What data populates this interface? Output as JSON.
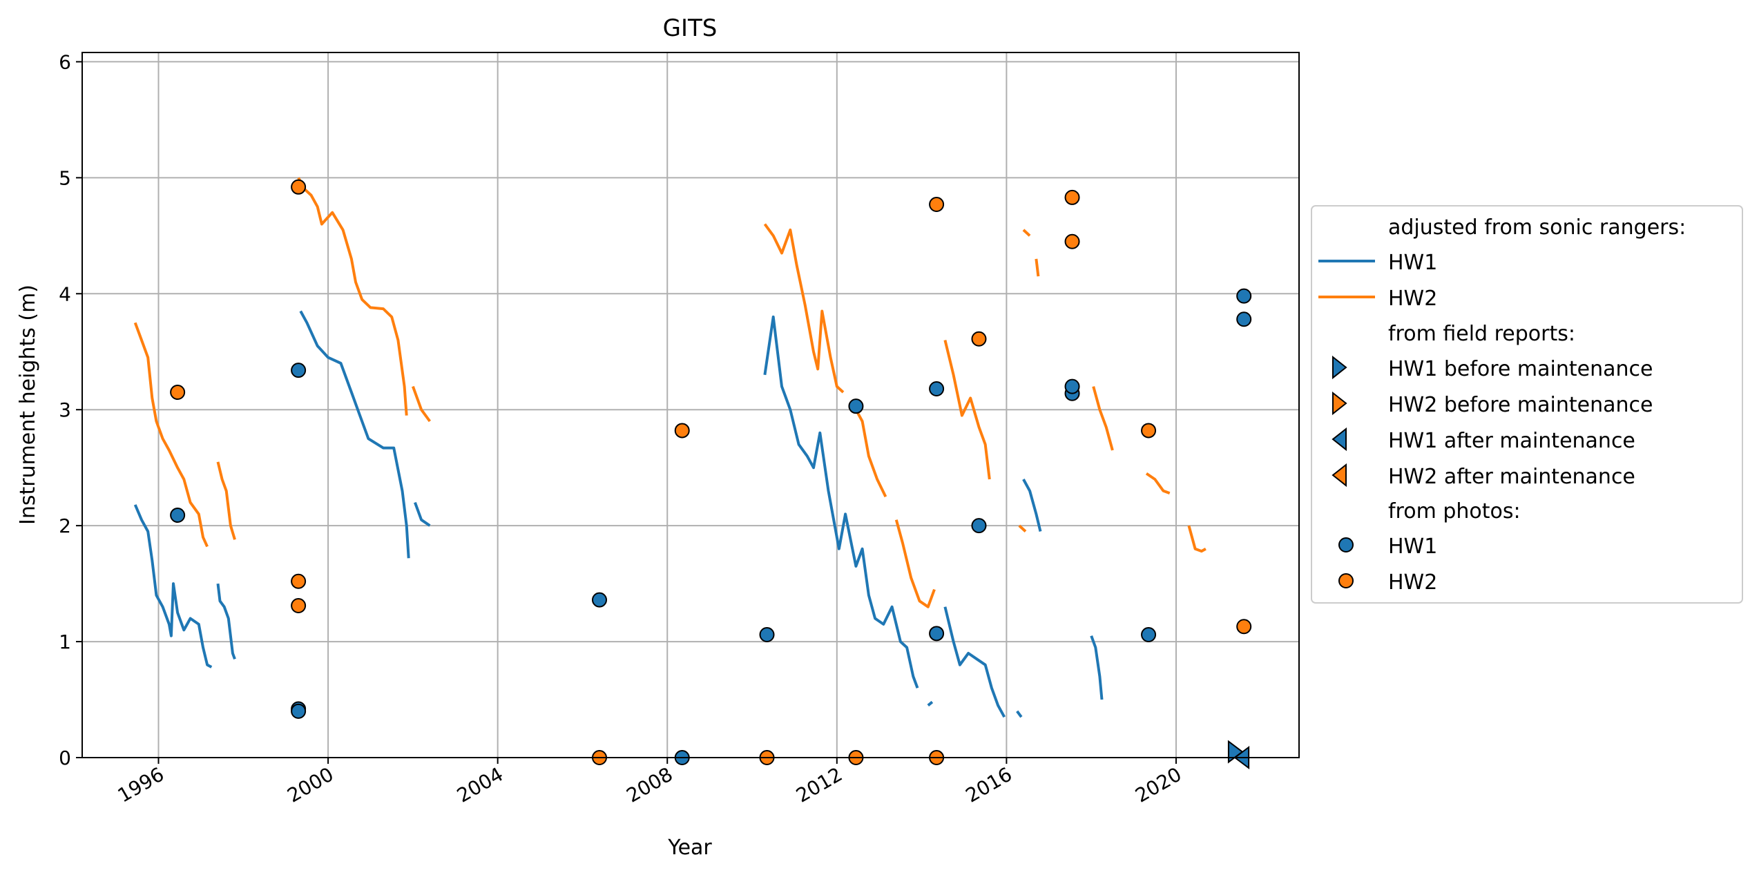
{
  "chart_data": {
    "type": "line",
    "title": "GITS",
    "xlabel": "Year",
    "ylabel": "Instrument heights (m)",
    "xlim": [
      1994.2,
      2022.9
    ],
    "ylim": [
      0,
      6.08
    ],
    "x_ticks": [
      1996,
      2000,
      2004,
      2008,
      2012,
      2016,
      2020
    ],
    "x_tick_labels": [
      "1996",
      "2000",
      "2004",
      "2008",
      "2012",
      "2016",
      "2020"
    ],
    "y_ticks": [
      0,
      1,
      2,
      3,
      4,
      5,
      6
    ],
    "y_tick_labels": [
      "0",
      "1",
      "2",
      "3",
      "4",
      "5",
      "6"
    ],
    "grid": true,
    "legend_position": "outside right",
    "legend": {
      "header_sonic": "adjusted from sonic rangers:",
      "header_field": "from field reports:",
      "header_photos": "from photos:",
      "hw1": "HW1",
      "hw2": "HW2",
      "hw1_before": "HW1 before maintenance",
      "hw2_before": "HW2 before maintenance",
      "hw1_after": "HW1 after maintenance",
      "hw2_after": "HW2 after maintenance"
    },
    "colors": {
      "hw1": "#1f77b4",
      "hw2": "#ff7f0e"
    },
    "sonic_series": [
      {
        "name": "HW1",
        "color": "#1f77b4",
        "segments": [
          [
            [
              1995.45,
              2.18
            ],
            [
              1995.6,
              2.05
            ],
            [
              1995.75,
              1.95
            ],
            [
              1995.85,
              1.7
            ],
            [
              1995.95,
              1.4
            ],
            [
              1996.1,
              1.3
            ],
            [
              1996.25,
              1.15
            ],
            [
              1996.3,
              1.05
            ],
            [
              1996.35,
              1.5
            ],
            [
              1996.45,
              1.25
            ],
            [
              1996.6,
              1.1
            ],
            [
              1996.75,
              1.2
            ],
            [
              1996.95,
              1.15
            ],
            [
              1997.05,
              0.95
            ],
            [
              1997.15,
              0.8
            ],
            [
              1997.25,
              0.78
            ]
          ],
          [
            [
              1997.4,
              1.5
            ],
            [
              1997.45,
              1.35
            ],
            [
              1997.55,
              1.3
            ],
            [
              1997.65,
              1.2
            ],
            [
              1997.75,
              0.9
            ],
            [
              1997.8,
              0.85
            ]
          ],
          [
            [
              1999.35,
              3.85
            ],
            [
              1999.5,
              3.75
            ],
            [
              1999.75,
              3.55
            ],
            [
              2000.0,
              3.45
            ],
            [
              2000.3,
              3.4
            ],
            [
              2000.55,
              3.15
            ],
            [
              2000.75,
              2.95
            ],
            [
              2000.95,
              2.75
            ],
            [
              2001.3,
              2.67
            ],
            [
              2001.55,
              2.67
            ],
            [
              2001.75,
              2.3
            ],
            [
              2001.85,
              2.0
            ],
            [
              2001.9,
              1.72
            ]
          ],
          [
            [
              2002.05,
              2.2
            ],
            [
              2002.2,
              2.05
            ],
            [
              2002.4,
              2.0
            ]
          ],
          [
            [
              2010.3,
              3.3
            ],
            [
              2010.5,
              3.8
            ],
            [
              2010.7,
              3.2
            ],
            [
              2010.9,
              3.0
            ],
            [
              2011.1,
              2.7
            ],
            [
              2011.3,
              2.6
            ],
            [
              2011.45,
              2.5
            ],
            [
              2011.6,
              2.8
            ],
            [
              2011.8,
              2.3
            ],
            [
              2011.95,
              2.0
            ],
            [
              2012.05,
              1.8
            ],
            [
              2012.2,
              2.1
            ],
            [
              2012.45,
              1.65
            ],
            [
              2012.6,
              1.8
            ],
            [
              2012.75,
              1.4
            ],
            [
              2012.9,
              1.2
            ],
            [
              2013.1,
              1.15
            ],
            [
              2013.3,
              1.3
            ],
            [
              2013.5,
              1.0
            ],
            [
              2013.65,
              0.95
            ],
            [
              2013.8,
              0.7
            ],
            [
              2013.9,
              0.6
            ]
          ],
          [
            [
              2014.15,
              0.45
            ],
            [
              2014.25,
              0.48
            ]
          ],
          [
            [
              2014.55,
              1.3
            ],
            [
              2014.75,
              1.0
            ],
            [
              2014.9,
              0.8
            ],
            [
              2015.1,
              0.9
            ],
            [
              2015.3,
              0.85
            ],
            [
              2015.5,
              0.8
            ],
            [
              2015.65,
              0.6
            ],
            [
              2015.8,
              0.45
            ],
            [
              2015.95,
              0.35
            ]
          ],
          [
            [
              2016.25,
              0.4
            ],
            [
              2016.35,
              0.35
            ]
          ],
          [
            [
              2016.4,
              2.4
            ],
            [
              2016.55,
              2.3
            ],
            [
              2016.7,
              2.1
            ],
            [
              2016.8,
              1.95
            ]
          ],
          [
            [
              2018.0,
              1.05
            ],
            [
              2018.1,
              0.95
            ],
            [
              2018.2,
              0.7
            ],
            [
              2018.25,
              0.5
            ]
          ]
        ]
      },
      {
        "name": "HW2",
        "color": "#ff7f0e",
        "segments": [
          [
            [
              1995.45,
              3.75
            ],
            [
              1995.6,
              3.6
            ],
            [
              1995.75,
              3.45
            ],
            [
              1995.85,
              3.1
            ],
            [
              1995.95,
              2.9
            ],
            [
              1996.1,
              2.75
            ],
            [
              1996.25,
              2.65
            ],
            [
              1996.45,
              2.5
            ],
            [
              1996.6,
              2.4
            ],
            [
              1996.75,
              2.2
            ],
            [
              1996.95,
              2.1
            ],
            [
              1997.05,
              1.9
            ],
            [
              1997.15,
              1.82
            ]
          ],
          [
            [
              1997.4,
              2.55
            ],
            [
              1997.5,
              2.4
            ],
            [
              1997.6,
              2.3
            ],
            [
              1997.7,
              2.0
            ],
            [
              1997.8,
              1.88
            ]
          ],
          [
            [
              1999.3,
              5.0
            ],
            [
              1999.45,
              4.9
            ],
            [
              1999.6,
              4.85
            ],
            [
              1999.75,
              4.75
            ],
            [
              1999.85,
              4.6
            ],
            [
              2000.1,
              4.7
            ],
            [
              2000.35,
              4.55
            ],
            [
              2000.55,
              4.3
            ],
            [
              2000.65,
              4.1
            ],
            [
              2000.8,
              3.95
            ],
            [
              2001.0,
              3.88
            ],
            [
              2001.3,
              3.87
            ],
            [
              2001.5,
              3.8
            ],
            [
              2001.65,
              3.6
            ],
            [
              2001.8,
              3.2
            ],
            [
              2001.85,
              2.95
            ]
          ],
          [
            [
              2002.0,
              3.2
            ],
            [
              2002.2,
              3.0
            ],
            [
              2002.4,
              2.9
            ]
          ],
          [
            [
              2010.3,
              4.6
            ],
            [
              2010.5,
              4.5
            ],
            [
              2010.7,
              4.35
            ],
            [
              2010.9,
              4.55
            ],
            [
              2011.05,
              4.25
            ],
            [
              2011.25,
              3.9
            ],
            [
              2011.45,
              3.5
            ],
            [
              2011.55,
              3.35
            ],
            [
              2011.65,
              3.85
            ],
            [
              2011.85,
              3.45
            ],
            [
              2012.0,
              3.2
            ],
            [
              2012.15,
              3.15
            ]
          ],
          [
            [
              2012.45,
              3.0
            ],
            [
              2012.6,
              2.9
            ],
            [
              2012.75,
              2.6
            ],
            [
              2012.95,
              2.4
            ],
            [
              2013.15,
              2.25
            ]
          ],
          [
            [
              2013.4,
              2.05
            ],
            [
              2013.55,
              1.85
            ],
            [
              2013.75,
              1.55
            ],
            [
              2013.95,
              1.35
            ],
            [
              2014.15,
              1.3
            ],
            [
              2014.3,
              1.45
            ]
          ],
          [
            [
              2014.55,
              3.6
            ],
            [
              2014.75,
              3.3
            ],
            [
              2014.95,
              2.95
            ],
            [
              2015.15,
              3.1
            ],
            [
              2015.35,
              2.85
            ],
            [
              2015.5,
              2.7
            ],
            [
              2015.6,
              2.4
            ]
          ],
          [
            [
              2016.4,
              4.55
            ],
            [
              2016.55,
              4.5
            ]
          ],
          [
            [
              2016.7,
              4.3
            ],
            [
              2016.75,
              4.15
            ]
          ],
          [
            [
              2016.3,
              2.0
            ],
            [
              2016.45,
              1.95
            ]
          ],
          [
            [
              2018.05,
              3.2
            ],
            [
              2018.2,
              3.0
            ],
            [
              2018.35,
              2.85
            ],
            [
              2018.5,
              2.65
            ]
          ],
          [
            [
              2019.3,
              2.45
            ],
            [
              2019.5,
              2.4
            ],
            [
              2019.7,
              2.3
            ],
            [
              2019.85,
              2.28
            ]
          ],
          [
            [
              2020.3,
              2.0
            ],
            [
              2020.45,
              1.8
            ],
            [
              2020.6,
              1.78
            ],
            [
              2020.7,
              1.8
            ]
          ]
        ]
      }
    ],
    "field_reports": {
      "hw1_before": [
        [
          2021.4,
          0.05
        ]
      ],
      "hw2_before": [],
      "hw1_after": [
        [
          2021.55,
          0.0
        ]
      ],
      "hw2_after": []
    },
    "photo_series": [
      {
        "name": "HW1",
        "color": "#1f77b4",
        "points": [
          [
            1996.45,
            2.09
          ],
          [
            1999.3,
            3.34
          ],
          [
            1999.3,
            0.42
          ],
          [
            1999.3,
            0.4
          ],
          [
            2006.4,
            1.36
          ],
          [
            2008.35,
            0.0
          ],
          [
            2010.35,
            1.06
          ],
          [
            2012.45,
            3.03
          ],
          [
            2014.35,
            3.18
          ],
          [
            2014.35,
            1.07
          ],
          [
            2015.35,
            2.0
          ],
          [
            2017.55,
            3.14
          ],
          [
            2017.55,
            3.2
          ],
          [
            2019.35,
            1.06
          ],
          [
            2021.6,
            3.98
          ],
          [
            2021.6,
            3.78
          ]
        ]
      },
      {
        "name": "HW2",
        "color": "#ff7f0e",
        "points": [
          [
            1996.45,
            3.15
          ],
          [
            1999.3,
            4.92
          ],
          [
            1999.3,
            1.52
          ],
          [
            1999.3,
            1.31
          ],
          [
            2006.4,
            0.0
          ],
          [
            2008.35,
            2.82
          ],
          [
            2010.35,
            0.0
          ],
          [
            2012.45,
            0.0
          ],
          [
            2014.35,
            4.77
          ],
          [
            2014.35,
            0.0
          ],
          [
            2015.35,
            3.61
          ],
          [
            2017.55,
            4.83
          ],
          [
            2017.55,
            4.45
          ],
          [
            2019.35,
            2.82
          ],
          [
            2021.6,
            1.13
          ]
        ]
      }
    ]
  }
}
